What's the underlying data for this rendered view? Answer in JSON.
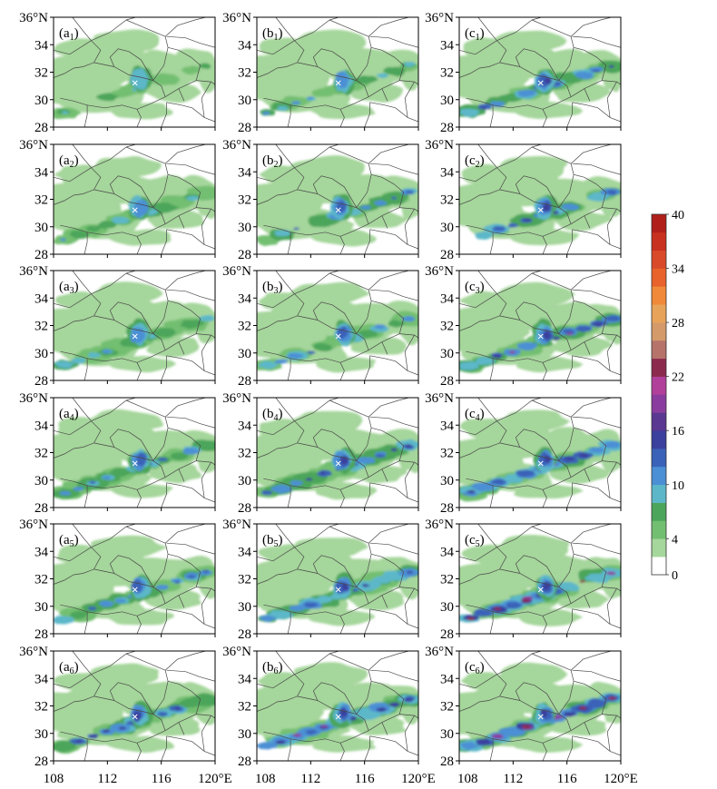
{
  "figure": {
    "latitude_ticks": [
      "36°N",
      "34",
      "32",
      "30",
      "28"
    ],
    "longitude_ticks": [
      "108",
      "112",
      "116",
      "120°E"
    ],
    "x_range": [
      108,
      120
    ],
    "y_range": [
      28,
      36
    ],
    "station_marker": {
      "lon": 114.05,
      "lat": 31.25,
      "symbol": "×",
      "color": "#ffffff"
    },
    "columns": [
      "a",
      "b",
      "c"
    ],
    "rows": 6,
    "panels": [
      {
        "label_letter": "a",
        "label_index": "1"
      },
      {
        "label_letter": "b",
        "label_index": "1"
      },
      {
        "label_letter": "c",
        "label_index": "1"
      },
      {
        "label_letter": "a",
        "label_index": "2"
      },
      {
        "label_letter": "b",
        "label_index": "2"
      },
      {
        "label_letter": "c",
        "label_index": "2"
      },
      {
        "label_letter": "a",
        "label_index": "3"
      },
      {
        "label_letter": "b",
        "label_index": "3"
      },
      {
        "label_letter": "c",
        "label_index": "3"
      },
      {
        "label_letter": "a",
        "label_index": "4"
      },
      {
        "label_letter": "b",
        "label_index": "4"
      },
      {
        "label_letter": "c",
        "label_index": "4"
      },
      {
        "label_letter": "a",
        "label_index": "5"
      },
      {
        "label_letter": "b",
        "label_index": "5"
      },
      {
        "label_letter": "c",
        "label_index": "5"
      },
      {
        "label_letter": "a",
        "label_index": "6"
      },
      {
        "label_letter": "b",
        "label_index": "6"
      },
      {
        "label_letter": "c",
        "label_index": "6"
      }
    ]
  },
  "colorbar": {
    "tick_labels": [
      "40",
      "34",
      "28",
      "22",
      "16",
      "10",
      "4",
      "0"
    ],
    "levels": [
      0,
      2,
      4,
      6,
      8,
      10,
      12,
      14,
      16,
      18,
      20,
      22,
      24,
      26,
      28,
      30,
      32,
      34,
      36,
      38,
      40
    ],
    "colors": [
      "#ffffff",
      "#a5d69b",
      "#73bf71",
      "#4ba55a",
      "#5cb7c9",
      "#4b8fd4",
      "#3a62b8",
      "#3b3f9d",
      "#5a3791",
      "#8a3d9e",
      "#b0409a",
      "#8c2a4e",
      "#b5736a",
      "#d49a6a",
      "#e8a35a",
      "#f08a3a",
      "#e8632b",
      "#d84a2a",
      "#c8301f",
      "#b01f1a"
    ]
  }
}
